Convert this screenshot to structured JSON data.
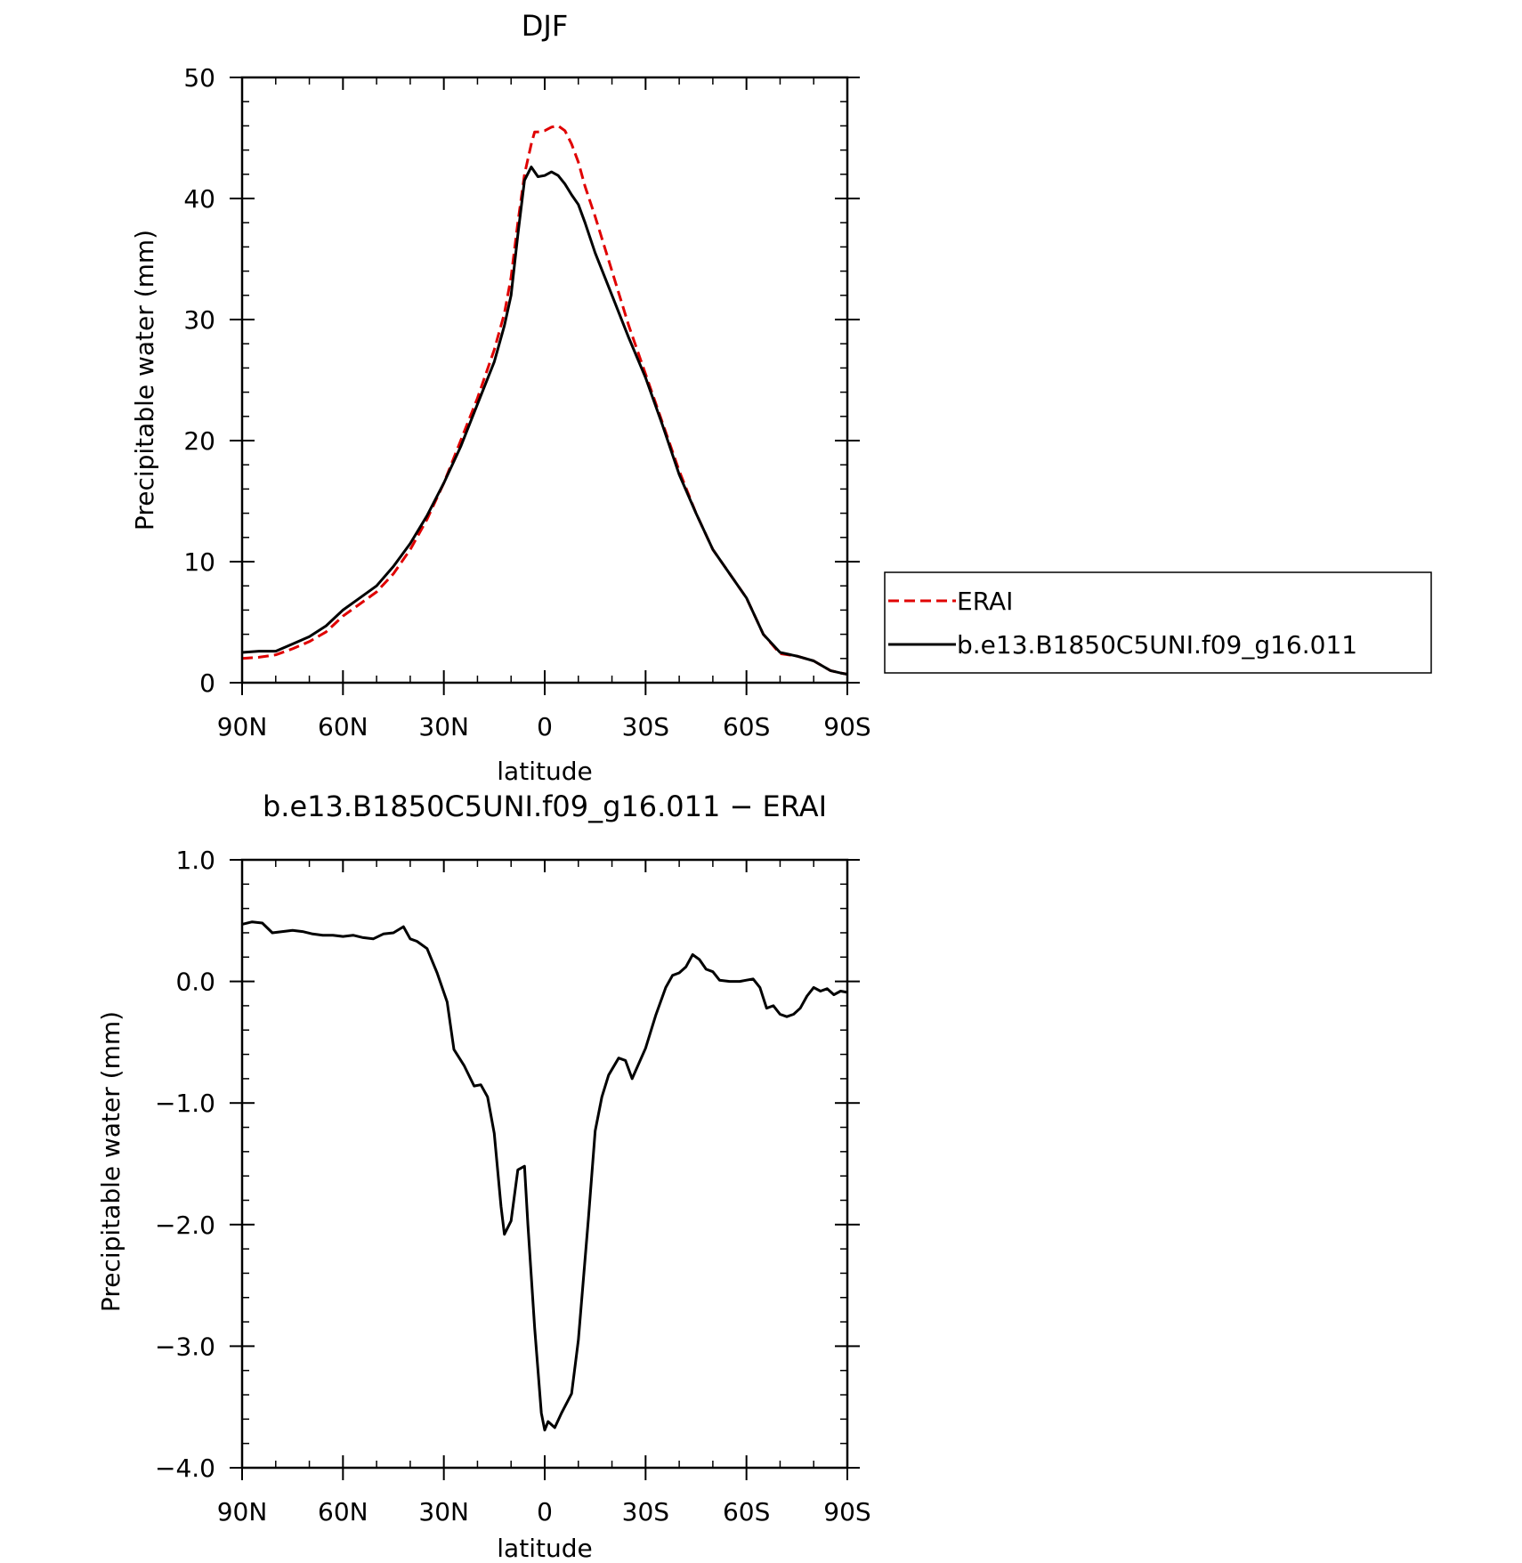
{
  "chart_data": [
    {
      "type": "line",
      "title": "DJF",
      "xlabel": "latitude",
      "ylabel": "Precipitable water (mm)",
      "xlim": [
        90,
        -90
      ],
      "ylim": [
        0,
        50
      ],
      "x_ticks": [
        {
          "value": 90,
          "label": "90N"
        },
        {
          "value": 60,
          "label": "60N"
        },
        {
          "value": 30,
          "label": "30N"
        },
        {
          "value": 0,
          "label": "0"
        },
        {
          "value": -30,
          "label": "30S"
        },
        {
          "value": -60,
          "label": "60S"
        },
        {
          "value": -90,
          "label": "90S"
        }
      ],
      "y_ticks": [
        {
          "value": 0,
          "label": "0"
        },
        {
          "value": 10,
          "label": "10"
        },
        {
          "value": 20,
          "label": "20"
        },
        {
          "value": 30,
          "label": "30"
        },
        {
          "value": 40,
          "label": "40"
        },
        {
          "value": 50,
          "label": "50"
        }
      ],
      "legend": "right",
      "series": [
        {
          "name": "ERAI",
          "color": "#e00000",
          "dash": "dashed",
          "x": [
            90,
            85,
            80,
            75,
            70,
            65,
            60,
            55,
            50,
            45,
            40,
            35,
            30,
            25,
            20,
            15,
            12,
            10,
            8,
            6,
            4,
            3,
            2,
            0,
            -2,
            -4,
            -6,
            -8,
            -10,
            -12,
            -15,
            -20,
            -25,
            -30,
            -35,
            -40,
            -45,
            -50,
            -55,
            -60,
            -65,
            -70,
            -75,
            -80,
            -85,
            -88,
            -90
          ],
          "values": [
            2.0,
            2.1,
            2.3,
            2.8,
            3.4,
            4.2,
            5.5,
            6.5,
            7.5,
            9.0,
            11.0,
            13.5,
            16.5,
            20.0,
            23.5,
            27.5,
            30.5,
            33.5,
            38.0,
            42.0,
            44.5,
            45.5,
            45.5,
            45.6,
            45.9,
            46.0,
            45.6,
            44.5,
            43.0,
            41.0,
            38.5,
            34.0,
            29.5,
            25.5,
            21.5,
            17.5,
            14.0,
            11.0,
            9.0,
            7.0,
            4.0,
            2.4,
            2.2,
            1.8,
            1.0,
            0.8,
            0.7
          ]
        },
        {
          "name": "b.e13.B1850C5UNI.f09_g16.011",
          "color": "#000000",
          "dash": "solid",
          "x": [
            90,
            85,
            80,
            75,
            70,
            65,
            60,
            55,
            50,
            45,
            40,
            35,
            30,
            25,
            20,
            15,
            12,
            10,
            8,
            6,
            4,
            3,
            2,
            0,
            -2,
            -4,
            -6,
            -8,
            -10,
            -12,
            -15,
            -20,
            -25,
            -30,
            -35,
            -40,
            -45,
            -50,
            -55,
            -60,
            -65,
            -70,
            -75,
            -80,
            -85,
            -88,
            -90
          ],
          "values": [
            2.5,
            2.6,
            2.6,
            3.2,
            3.8,
            4.7,
            6.0,
            7.0,
            8.0,
            9.6,
            11.5,
            13.8,
            16.5,
            19.5,
            23.0,
            26.5,
            29.5,
            32.0,
            37.0,
            41.5,
            42.6,
            42.2,
            41.8,
            41.9,
            42.2,
            41.9,
            41.2,
            40.3,
            39.5,
            38.0,
            35.5,
            32.0,
            28.5,
            25.2,
            21.3,
            17.2,
            14.0,
            11.0,
            9.0,
            7.0,
            4.0,
            2.5,
            2.2,
            1.8,
            1.0,
            0.8,
            0.7
          ]
        }
      ]
    },
    {
      "type": "line",
      "title": "b.e13.B1850C5UNI.f09_g16.011 − ERAI",
      "xlabel": "latitude",
      "ylabel": "Precipitable water (mm)",
      "xlim": [
        90,
        -90
      ],
      "ylim": [
        -4.0,
        1.0
      ],
      "x_ticks": [
        {
          "value": 90,
          "label": "90N"
        },
        {
          "value": 60,
          "label": "60N"
        },
        {
          "value": 30,
          "label": "30N"
        },
        {
          "value": 0,
          "label": "0"
        },
        {
          "value": -30,
          "label": "30S"
        },
        {
          "value": -60,
          "label": "60S"
        },
        {
          "value": -90,
          "label": "90S"
        }
      ],
      "y_ticks": [
        {
          "value": 1.0,
          "label": "1.0"
        },
        {
          "value": 0.0,
          "label": "0.0"
        },
        {
          "value": -1.0,
          "label": "−1.0"
        },
        {
          "value": -2.0,
          "label": "−2.0"
        },
        {
          "value": -3.0,
          "label": "−3.0"
        },
        {
          "value": -4.0,
          "label": "−4.0"
        }
      ],
      "series": [
        {
          "color": "#000000",
          "dash": "solid",
          "x": [
            90,
            87,
            84,
            81,
            78,
            75,
            72,
            69,
            66,
            63,
            60,
            57,
            54,
            51,
            48,
            45,
            42,
            40,
            38,
            35,
            32,
            29,
            27,
            24,
            21,
            19,
            17,
            15,
            13,
            12,
            10,
            8,
            6,
            5,
            3,
            1,
            0,
            -1,
            -3,
            -5,
            -8,
            -10,
            -13,
            -15,
            -17,
            -19,
            -22,
            -24,
            -26,
            -30,
            -33,
            -36,
            -38,
            -40,
            -42,
            -44,
            -46,
            -48,
            -50,
            -52,
            -55,
            -58,
            -60,
            -62,
            -64,
            -66,
            -68,
            -70,
            -72,
            -74,
            -76,
            -78,
            -80,
            -82,
            -84,
            -86,
            -88,
            -90
          ],
          "values": [
            0.47,
            0.49,
            0.48,
            0.4,
            0.41,
            0.42,
            0.41,
            0.39,
            0.38,
            0.38,
            0.37,
            0.38,
            0.36,
            0.35,
            0.39,
            0.4,
            0.45,
            0.35,
            0.33,
            0.27,
            0.07,
            -0.17,
            -0.56,
            -0.69,
            -0.86,
            -0.85,
            -0.95,
            -1.25,
            -1.85,
            -2.08,
            -1.97,
            -1.55,
            -1.52,
            -2.0,
            -2.85,
            -3.55,
            -3.69,
            -3.62,
            -3.67,
            -3.55,
            -3.39,
            -2.95,
            -1.95,
            -1.23,
            -0.95,
            -0.77,
            -0.63,
            -0.65,
            -0.8,
            -0.55,
            -0.28,
            -0.05,
            0.05,
            0.07,
            0.12,
            0.22,
            0.18,
            0.1,
            0.08,
            0.01,
            0.0,
            0.0,
            0.01,
            0.02,
            -0.05,
            -0.22,
            -0.2,
            -0.27,
            -0.29,
            -0.27,
            -0.22,
            -0.12,
            -0.05,
            -0.08,
            -0.06,
            -0.11,
            -0.08,
            -0.09
          ]
        }
      ]
    }
  ]
}
